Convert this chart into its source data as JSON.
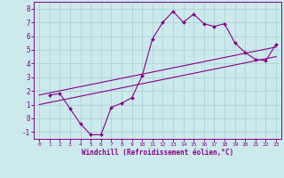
{
  "bg_color": "#cce9ec",
  "line_color": "#880088",
  "grid_color": "#aad4d8",
  "xlabel": "Windchill (Refroidissement éolien,°C)",
  "xlabel_color": "#880088",
  "tick_color": "#880088",
  "spine_color": "#880088",
  "ylim": [
    -1.5,
    8.5
  ],
  "xlim": [
    -0.5,
    23.5
  ],
  "yticks": [
    -1,
    0,
    1,
    2,
    3,
    4,
    5,
    6,
    7,
    8
  ],
  "xticks": [
    0,
    1,
    2,
    3,
    4,
    5,
    6,
    7,
    8,
    9,
    10,
    11,
    12,
    13,
    14,
    15,
    16,
    17,
    18,
    19,
    20,
    21,
    22,
    23
  ],
  "line1_x": [
    1,
    2,
    3,
    4,
    5,
    6,
    7,
    8,
    9,
    10,
    11,
    12,
    13,
    14,
    15,
    16,
    17,
    18,
    19,
    20,
    21,
    22,
    23
  ],
  "line1_y": [
    1.7,
    1.8,
    0.7,
    -0.4,
    -1.2,
    -1.2,
    0.8,
    1.1,
    1.5,
    3.1,
    5.8,
    7.0,
    7.8,
    7.0,
    7.6,
    6.9,
    6.7,
    6.9,
    5.5,
    4.8,
    4.3,
    4.2,
    5.4
  ],
  "line2_x": [
    0,
    23
  ],
  "line2_y": [
    1.7,
    5.2
  ],
  "line3_x": [
    0,
    23
  ],
  "line3_y": [
    1.0,
    4.5
  ]
}
